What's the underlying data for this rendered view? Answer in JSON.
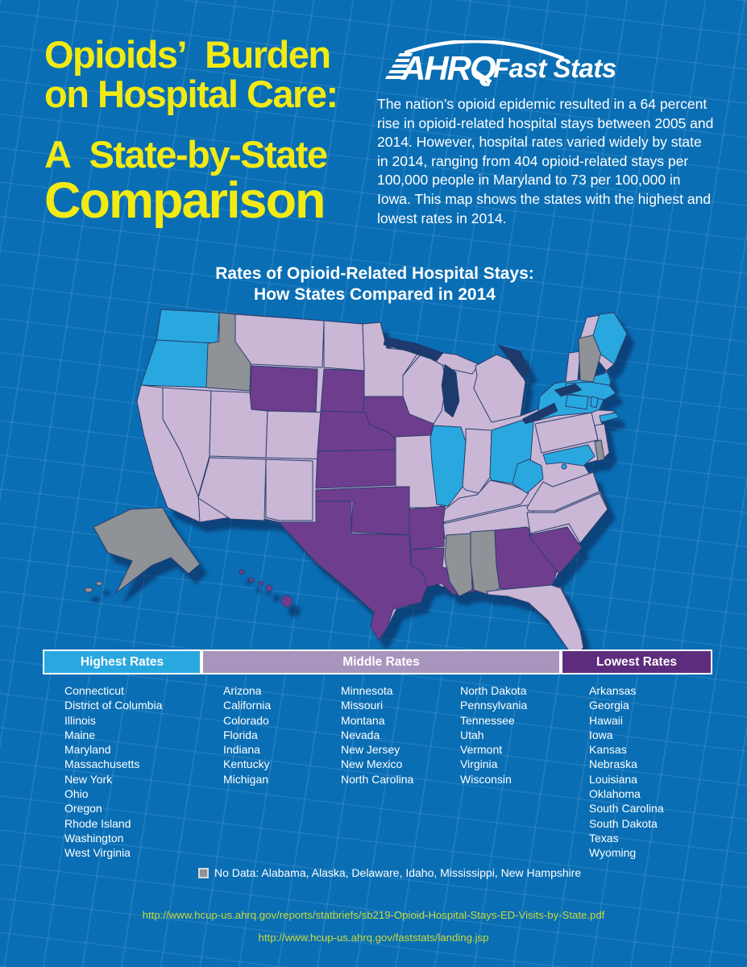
{
  "header": {
    "title_line1": "Opioids’  Burden",
    "title_line2": "on Hospital Care:",
    "title_line3": "A  State-by-State",
    "title_line4": "Comparison",
    "logo_text": "AHRQ",
    "logo_suffix": "Fast Stats",
    "intro": "The nation’s opioid epidemic resulted in a 64 percent rise in opioid-related hospital stays between 2005 and 2014. However, hospital rates varied widely by state in 2014, ranging from 404 opioid-related stays per 100,000 people in Maryland to 73 per 100,000 in Iowa. This map shows the states with the highest and lowest rates in 2014."
  },
  "map": {
    "title_line1": "Rates of Opioid-Related Hospital Stays:",
    "title_line2": "How States Compared in 2014"
  },
  "legend": {
    "highest_label": "Highest Rates",
    "middle_label": "Middle Rates",
    "lowest_label": "Lowest Rates",
    "no_data_label": "No Data:  Alabama, Alaska, Delaware, Idaho, Mississippi, New Hampshire"
  },
  "lists": {
    "highest": [
      "Connecticut",
      "District of Columbia",
      "Illinois",
      "Maine",
      "Maryland",
      "Massachusetts",
      "New York",
      "Ohio",
      "Oregon",
      "Rhode Island",
      "Washington",
      "West Virginia"
    ],
    "middle_col1": [
      "Arizona",
      "California",
      "Colorado",
      "Florida",
      "Indiana",
      "Kentucky",
      "Michigan"
    ],
    "middle_col2": [
      "Minnesota",
      "Missouri",
      "Montana",
      "Nevada",
      "New Jersey",
      "New Mexico",
      "North Carolina"
    ],
    "middle_col3": [
      "North Dakota",
      "Pennsylvania",
      "Tennessee",
      "Utah",
      "Vermont",
      "Virginia",
      "Wisconsin"
    ],
    "lowest": [
      "Arkansas",
      "Georgia",
      "Hawaii",
      "Iowa",
      "Kansas",
      "Nebraska",
      "Louisiana",
      "Oklahoma",
      "South Carolina",
      "South Dakota",
      "Texas",
      "Wyoming"
    ]
  },
  "links": {
    "url1": "http://www.hcup-us.ahrq.gov/reports/statbriefs/sb219-Opioid-Hospital-Stays-ED-Visits-by-State.pdf",
    "url2": "http://www.hcup-us.ahrq.gov/faststats/landing.jsp"
  },
  "colors": {
    "background": "#0a6eb4",
    "headline_yellow": "#f2ea12",
    "white": "#ffffff",
    "url_green": "#c8da3d",
    "water": "#1d3a6d",
    "legend_highest": "#29a8e0",
    "legend_middle": "#a795bd",
    "legend_lowest": "#5e2c7d",
    "category_fill": {
      "highest": "#29a8e0",
      "middle": "#c9b7d5",
      "lowest": "#6f3d8d",
      "no_data": "#8f9296"
    }
  },
  "chart_data": {
    "type": "choropleth",
    "title": "Rates of Opioid-Related Hospital Stays: How States Compared in 2014",
    "year": 2014,
    "unit": "opioid-related hospital stays per 100,000 people",
    "key_stats": {
      "rise_percent_2005_2014": 64,
      "max": {
        "state": "Maryland",
        "rate": 404
      },
      "min": {
        "state": "Iowa",
        "rate": 73
      }
    },
    "categories": [
      "Highest Rates",
      "Middle Rates",
      "Lowest Rates",
      "No Data"
    ],
    "legend_position": "bottom",
    "state_categories": {
      "WA": "highest",
      "OR": "highest",
      "IL": "highest",
      "OH": "highest",
      "WV": "highest",
      "NY": "highest",
      "ME": "highest",
      "MA": "highest",
      "CT": "highest",
      "RI": "highest",
      "MD": "highest",
      "DC": "highest",
      "CA": "middle",
      "NV": "middle",
      "MT": "middle",
      "UT": "middle",
      "CO": "middle",
      "AZ": "middle",
      "NM": "middle",
      "ND": "middle",
      "MN": "middle",
      "WI": "middle",
      "MO": "middle",
      "IN": "middle",
      "MI": "middle",
      "KY": "middle",
      "TN": "middle",
      "VA": "middle",
      "NC": "middle",
      "PA": "middle",
      "NJ": "middle",
      "VT": "middle",
      "FL": "middle",
      "WY": "lowest",
      "SD": "lowest",
      "NE": "lowest",
      "KS": "lowest",
      "OK": "lowest",
      "TX": "lowest",
      "IA": "lowest",
      "AR": "lowest",
      "LA": "lowest",
      "GA": "lowest",
      "SC": "lowest",
      "HI": "lowest",
      "ID": "no_data",
      "AK": "no_data",
      "MS": "no_data",
      "AL": "no_data",
      "NH": "no_data",
      "DE": "no_data"
    }
  }
}
